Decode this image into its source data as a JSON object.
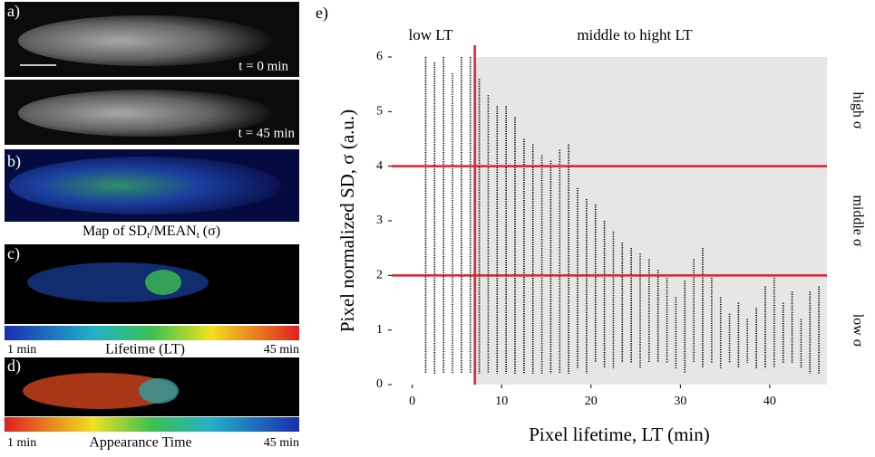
{
  "panels": {
    "a": {
      "letter": "a)",
      "t0": "t = 0 min",
      "t45": "t = 45 min"
    },
    "b": {
      "letter": "b)",
      "caption": [
        "Map of SD",
        "t",
        "/MEAN",
        "t",
        " (σ)"
      ]
    },
    "c": {
      "letter": "c)",
      "left": "1 min",
      "center": "Lifetime (LT)",
      "right": "45 min"
    },
    "d": {
      "letter": "d)",
      "left": "1 min",
      "center": "Appearance Time",
      "right": "45 min"
    }
  },
  "chart_data": {
    "type": "range-scatter",
    "letter": "e)",
    "xlabel": "Pixel lifetime, LT (min)",
    "ylabel": "Pixel normalized SD, σ (a.u.)",
    "top_labels": [
      "low LT",
      "middle to hight LT"
    ],
    "side_labels": [
      "high σ",
      "middle σ",
      "low σ"
    ],
    "xlim": [
      -2.3,
      46.4
    ],
    "ylim": [
      0,
      6
    ],
    "xticks": [
      0,
      10,
      20,
      30,
      40
    ],
    "yticks": [
      0,
      1,
      2,
      3,
      4,
      5,
      6
    ],
    "thresholds": {
      "x": [
        7
      ],
      "y": [
        2,
        4
      ]
    },
    "threshold_color": "#e0212b",
    "shade_color": "#e6e6e6",
    "x": [
      1.5,
      2.5,
      3.5,
      4.5,
      5.5,
      6.5,
      7.5,
      8.5,
      9.5,
      10.5,
      11.5,
      12.5,
      13.5,
      14.5,
      15.5,
      16.5,
      17.5,
      18.5,
      19.5,
      20.5,
      21.5,
      22.5,
      23.5,
      24.5,
      25.5,
      26.5,
      27.5,
      28.5,
      29.5,
      30.5,
      31.5,
      32.5,
      33.5,
      34.5,
      35.5,
      36.5,
      37.5,
      38.5,
      39.5,
      40.5,
      41.5,
      42.5,
      43.5,
      44.5,
      45.5
    ],
    "high": [
      6.0,
      5.9,
      6.0,
      5.7,
      6.0,
      6.0,
      5.6,
      5.3,
      5.1,
      5.1,
      4.9,
      4.5,
      4.4,
      4.2,
      4.1,
      4.3,
      4.4,
      3.6,
      3.4,
      3.3,
      3.0,
      2.8,
      2.6,
      2.5,
      2.4,
      2.3,
      2.1,
      2.0,
      1.6,
      1.9,
      2.3,
      2.5,
      2.0,
      1.6,
      1.3,
      1.5,
      1.2,
      1.4,
      1.8,
      2.0,
      1.5,
      1.7,
      1.2,
      1.7,
      1.8
    ],
    "low": [
      0.2,
      0.2,
      0.2,
      0.2,
      0.2,
      0.2,
      0.2,
      0.2,
      0.2,
      0.2,
      0.2,
      0.2,
      0.2,
      0.2,
      0.2,
      0.2,
      0.2,
      0.3,
      0.2,
      0.4,
      0.3,
      0.3,
      0.4,
      0.4,
      0.3,
      0.4,
      0.4,
      0.4,
      0.3,
      0.2,
      0.4,
      0.3,
      0.4,
      0.3,
      0.4,
      0.3,
      0.4,
      0.3,
      0.3,
      0.3,
      0.4,
      0.4,
      0.3,
      0.2,
      0.2
    ]
  }
}
